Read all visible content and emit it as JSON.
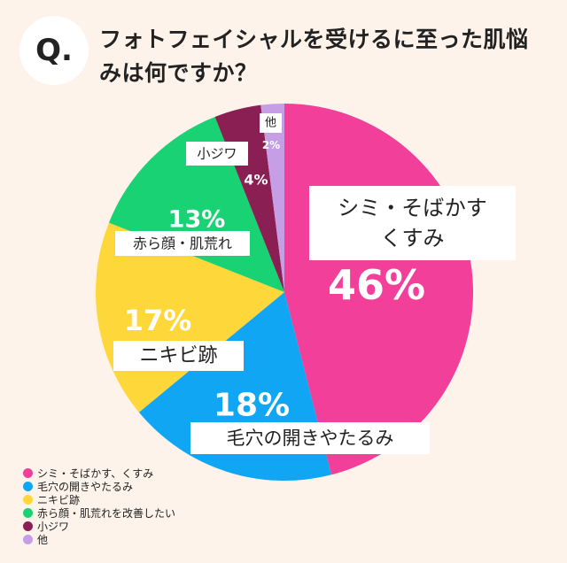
{
  "header": {
    "badge": "Q.",
    "question": "フォトフェイシャルを受けるに至った肌悩みは何ですか？"
  },
  "chart_data": {
    "type": "pie",
    "start_angle_deg": 0,
    "direction": "clockwise",
    "slices": [
      {
        "legend": "シミ・そばかす、くすみ",
        "label_lines": [
          "シミ・そばかす",
          "くすみ"
        ],
        "value": 46,
        "display": "46%",
        "color": "#f23f9a"
      },
      {
        "legend": "毛穴の開きやたるみ",
        "label_lines": [
          "毛穴の開きやたるみ"
        ],
        "value": 18,
        "display": "18%",
        "color": "#10a6f4"
      },
      {
        "legend": "ニキビ跡",
        "label_lines": [
          "ニキビ跡"
        ],
        "value": 17,
        "display": "17%",
        "color": "#fed73a"
      },
      {
        "legend": "赤ら顔・肌荒れを改善したい",
        "label_lines": [
          "赤ら顔・肌荒れ"
        ],
        "value": 13,
        "display": "13%",
        "color": "#19d274"
      },
      {
        "legend": "小ジワ",
        "label_lines": [
          "小ジワ"
        ],
        "value": 4,
        "display": "4%",
        "color": "#8a1f53"
      },
      {
        "legend": "他",
        "label_lines": [
          "他"
        ],
        "value": 2,
        "display": "2%",
        "color": "#c69ee6"
      }
    ]
  }
}
